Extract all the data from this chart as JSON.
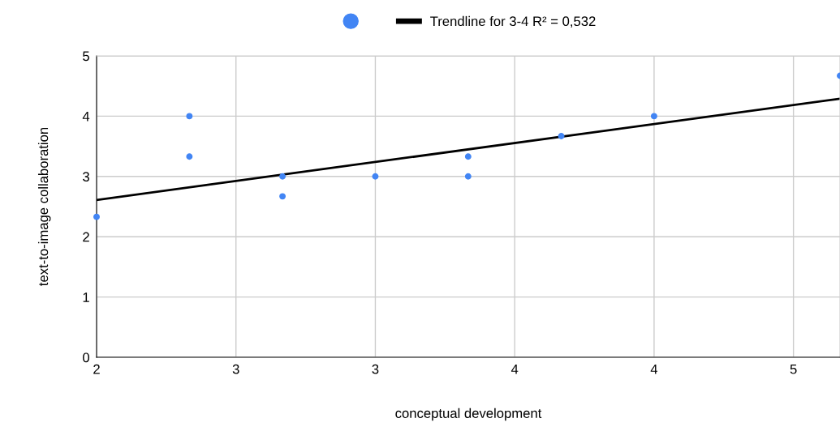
{
  "chart_data": {
    "type": "scatter",
    "xlabel": "conceptual development",
    "ylabel": "text-to-image collaboration",
    "xlim": [
      2,
      4.667
    ],
    "ylim": [
      0,
      5
    ],
    "xticks": [
      2,
      {
        "value": 2.5,
        "label": "3"
      },
      3,
      {
        "value": 3.5,
        "label": "4"
      },
      4,
      {
        "value": 4.5,
        "label": "5"
      }
    ],
    "yticks": [
      0,
      1,
      2,
      3,
      4,
      5
    ],
    "grid": true,
    "legend": "top",
    "series": [
      {
        "marker": "circle",
        "color": "#4285f4",
        "x": [
          2,
          2.333,
          2.333,
          2.667,
          2.667,
          3,
          3.333,
          3.333,
          3.667,
          4,
          4.667
        ],
        "values": [
          2.33,
          4,
          3.33,
          3,
          2.67,
          3,
          3.33,
          3,
          3.67,
          4,
          4.67
        ]
      },
      {
        "type": "line",
        "name": "Trendline for 3-4 R² = 0,532",
        "color": "#000000",
        "line_style": "solid",
        "marker": "none",
        "x": [
          2,
          4.667
        ],
        "values": [
          2.61,
          4.29
        ]
      }
    ]
  }
}
